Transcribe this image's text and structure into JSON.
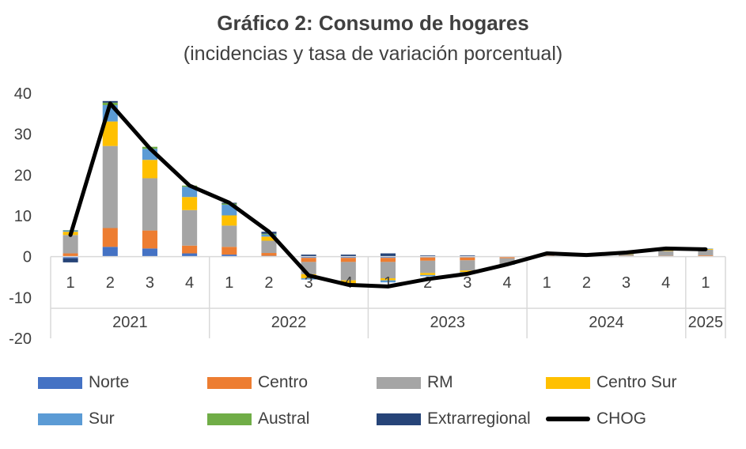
{
  "header": {
    "title": "Gráfico 2: Consumo de hogares",
    "subtitle": "(incidencias y tasa de variación porcentual)"
  },
  "colors": {
    "Norte": "#4472C4",
    "Centro": "#ED7D31",
    "RM": "#A5A5A5",
    "Centro Sur": "#FFC000",
    "Sur": "#5B9BD5",
    "Austral": "#70AD47",
    "Extrarregional": "#264478",
    "CHOG": "#000000"
  },
  "chart_data": {
    "type": "bar",
    "stacked": true,
    "title": "Gráfico 2: Consumo de hogares",
    "subtitle": "(incidencias y tasa de variación porcentual)",
    "ylim": [
      -20,
      40
    ],
    "yticks": [
      "-20",
      "-10",
      "0",
      "10",
      "20",
      "30",
      "40"
    ],
    "grid": false,
    "legend_position": "bottom",
    "categories": [
      "1",
      "2",
      "3",
      "4",
      "1",
      "2",
      "3",
      "4",
      "1",
      "2",
      "3",
      "4",
      "1",
      "2",
      "3",
      "4",
      "1"
    ],
    "year_groups": [
      {
        "label": "2021",
        "count": 4
      },
      {
        "label": "2022",
        "count": 4
      },
      {
        "label": "2023",
        "count": 4
      },
      {
        "label": "2024",
        "count": 4
      },
      {
        "label": "2025",
        "count": 1
      }
    ],
    "series": [
      {
        "name": "Norte",
        "values": [
          -0.4,
          2.4,
          2.0,
          0.8,
          0.5,
          0.2,
          -0.3,
          -0.3,
          -0.3,
          -0.2,
          -0.2,
          -0.1,
          0.1,
          0.1,
          0.1,
          0.1,
          0.1
        ]
      },
      {
        "name": "Centro",
        "values": [
          0.8,
          4.6,
          4.4,
          1.9,
          1.9,
          0.7,
          -1.0,
          -1.0,
          -1.0,
          -0.8,
          -0.7,
          -0.3,
          0.1,
          0.1,
          0.1,
          0.1,
          0.2
        ]
      },
      {
        "name": "RM",
        "values": [
          4.5,
          20.1,
          12.8,
          8.7,
          5.2,
          3.0,
          -3.0,
          -4.5,
          -4.0,
          -3.0,
          -2.5,
          -1.4,
          0.3,
          0.1,
          0.3,
          1.2,
          1.4
        ]
      },
      {
        "name": "Centro Sur",
        "values": [
          0.8,
          6.0,
          4.5,
          3.2,
          2.5,
          1.0,
          -1.0,
          -0.8,
          -0.5,
          -0.5,
          -0.4,
          -0.1,
          0.1,
          0.1,
          0.1,
          0.2,
          0.2
        ]
      },
      {
        "name": "Sur",
        "values": [
          0.3,
          4.0,
          2.7,
          2.5,
          2.6,
          0.5,
          -0.3,
          -0.3,
          -0.5,
          -0.3,
          -0.2,
          -0.1,
          0.1,
          0.1,
          0.1,
          0.2,
          0.1
        ]
      },
      {
        "name": "Austral",
        "values": [
          0.1,
          0.6,
          0.5,
          0.3,
          0.3,
          0.2,
          0.0,
          0.0,
          0.0,
          0.0,
          0.0,
          0.0,
          0.0,
          0.0,
          0.0,
          0.0,
          0.0
        ]
      },
      {
        "name": "Extrarregional",
        "values": [
          -1.0,
          0.4,
          0.0,
          0.0,
          0.2,
          0.5,
          0.5,
          0.5,
          0.8,
          0.3,
          0.3,
          0.1,
          0.0,
          0.0,
          0.0,
          0.0,
          0.0
        ]
      }
    ],
    "line": {
      "name": "CHOG",
      "values": [
        5.3,
        37.5,
        26.5,
        17.4,
        13.2,
        6.1,
        -4.6,
        -6.9,
        -7.3,
        -5.5,
        -4.2,
        -1.9,
        0.8,
        0.4,
        1.0,
        2.0,
        1.8
      ]
    }
  },
  "legend": {
    "items": [
      {
        "label": "Norte",
        "color": "#4472C4",
        "kind": "bar"
      },
      {
        "label": "Centro",
        "color": "#ED7D31",
        "kind": "bar"
      },
      {
        "label": "RM",
        "color": "#A5A5A5",
        "kind": "bar"
      },
      {
        "label": "Centro Sur",
        "color": "#FFC000",
        "kind": "bar"
      },
      {
        "label": "Sur",
        "color": "#5B9BD5",
        "kind": "bar"
      },
      {
        "label": "Austral",
        "color": "#70AD47",
        "kind": "bar"
      },
      {
        "label": "Extrarregional",
        "color": "#264478",
        "kind": "bar"
      },
      {
        "label": "CHOG",
        "color": "#000000",
        "kind": "line"
      }
    ]
  }
}
